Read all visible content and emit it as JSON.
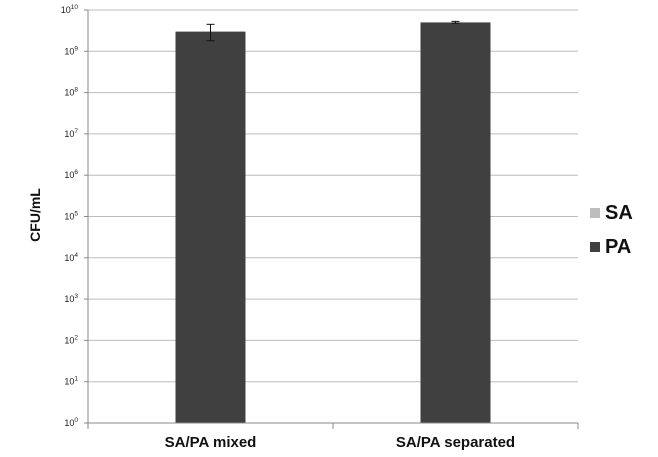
{
  "chart_data": {
    "type": "bar",
    "ylabel": "CFU/mL",
    "yscale": "log",
    "ylim": [
      1,
      10000000000
    ],
    "ytick_base": "10",
    "yticks": [
      {
        "value": 1,
        "exp": "0"
      },
      {
        "value": 10,
        "exp": "1"
      },
      {
        "value": 100,
        "exp": "2"
      },
      {
        "value": 1000,
        "exp": "3"
      },
      {
        "value": 10000,
        "exp": "4"
      },
      {
        "value": 100000,
        "exp": "5"
      },
      {
        "value": 1000000,
        "exp": "6"
      },
      {
        "value": 10000000,
        "exp": "7"
      },
      {
        "value": 100000000,
        "exp": "8"
      },
      {
        "value": 1000000000,
        "exp": "9"
      },
      {
        "value": 10000000000,
        "exp": "10"
      }
    ],
    "categories": [
      "SA/PA mixed",
      "SA/PA separated"
    ],
    "series": [
      {
        "name": "SA",
        "color": "#bdbdbd",
        "values": [
          null,
          null
        ]
      },
      {
        "name": "PA",
        "color": "#404040",
        "values": [
          3000000000,
          5000000000
        ],
        "error_low": [
          1800000000,
          4800000000
        ],
        "error_high": [
          4500000000,
          5300000000
        ]
      }
    ],
    "grid": true,
    "legend_position": "right"
  }
}
